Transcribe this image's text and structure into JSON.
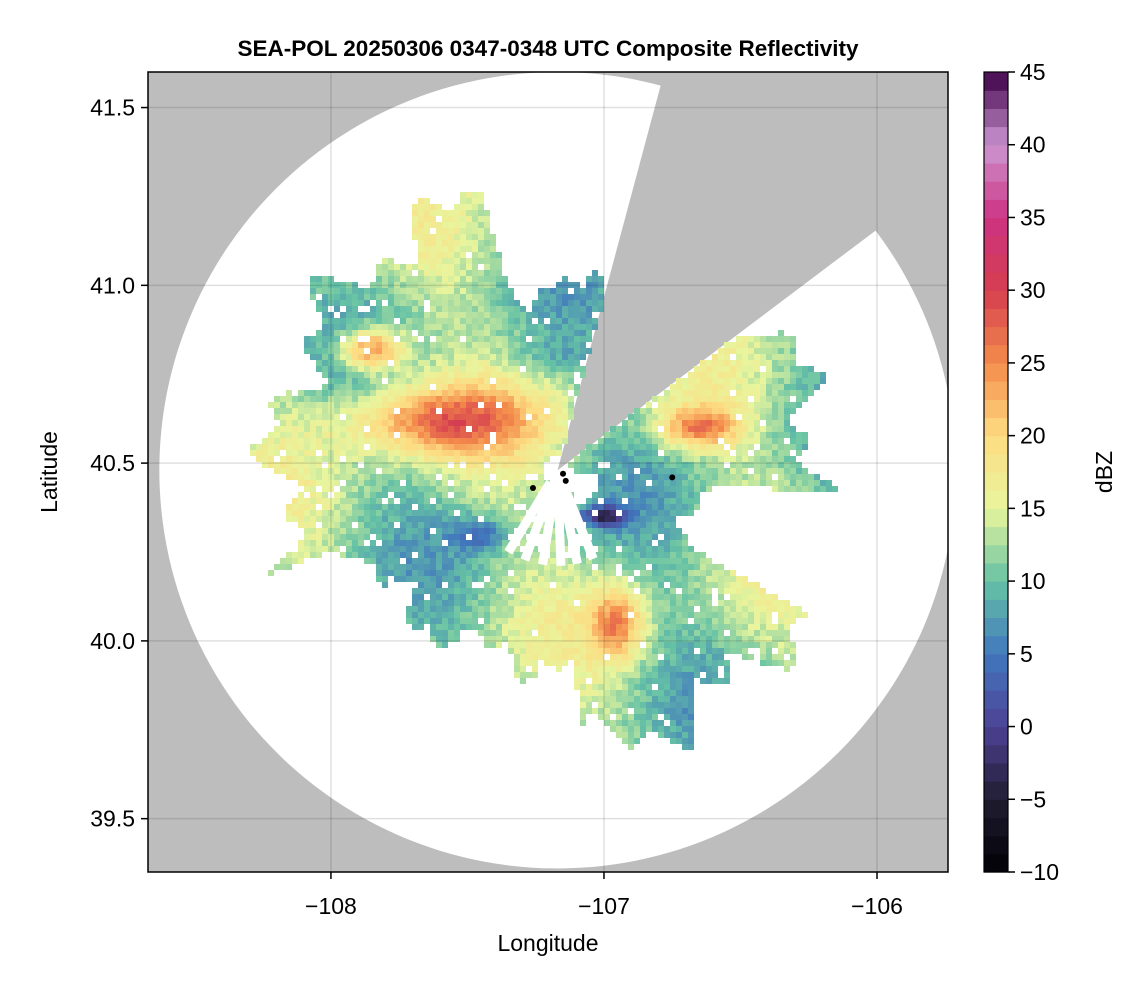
{
  "chart_data": {
    "type": "heatmap",
    "title": "SEA-POL 20250306 0347-0348 UTC Composite Reflectivity",
    "xlabel": "Longitude",
    "ylabel": "Latitude",
    "xlim": [
      -108.67,
      -105.74
    ],
    "ylim": [
      39.35,
      41.6
    ],
    "xticks": [
      -108,
      -107,
      -106
    ],
    "xtick_labels": [
      "−108",
      "−107",
      "−106"
    ],
    "yticks": [
      39.5,
      40.0,
      40.5,
      41.0,
      41.5
    ],
    "ytick_labels": [
      "39.5",
      "40.0",
      "40.5",
      "41.0",
      "41.5"
    ],
    "grid": true,
    "colorbar": {
      "label": "dBZ",
      "range": [
        -10,
        45
      ],
      "ticks": [
        -10,
        -5,
        0,
        5,
        10,
        15,
        20,
        25,
        30,
        35,
        40,
        45
      ],
      "tick_labels": [
        "−10",
        "−5",
        "0",
        "5",
        "10",
        "15",
        "20",
        "25",
        "30",
        "35",
        "40",
        "45"
      ],
      "colormap": "spectral_r"
    },
    "radar_site": {
      "lon": -107.17,
      "lat": 40.48
    },
    "radar_range_deg_lat": 1.12,
    "blocked_sectors_deg_from_north": [
      [
        15,
        53
      ]
    ],
    "background_color": "#bdbdbd",
    "echo_regions": [
      {
        "lon": -107.6,
        "lat": 40.62,
        "dbz": 27,
        "extent_lon": 0.35,
        "extent_lat": 0.1
      },
      {
        "lon": -107.85,
        "lat": 40.82,
        "dbz": 29,
        "extent_lon": 0.12,
        "extent_lat": 0.06
      },
      {
        "lon": -106.95,
        "lat": 40.05,
        "dbz": 25,
        "extent_lon": 0.1,
        "extent_lat": 0.1
      },
      {
        "lon": -106.65,
        "lat": 40.6,
        "dbz": 26,
        "extent_lon": 0.15,
        "extent_lat": 0.06
      },
      {
        "lon": -107.45,
        "lat": 40.3,
        "dbz": 6,
        "extent_lon": 0.1,
        "extent_lat": 0.05
      },
      {
        "lon": -107.0,
        "lat": 40.35,
        "dbz": 0,
        "extent_lon": 0.08,
        "extent_lat": 0.03
      },
      {
        "lon": -107.2,
        "lat": 40.8,
        "dbz": 11,
        "extent_lon": 0.15,
        "extent_lat": 0.04
      }
    ]
  }
}
